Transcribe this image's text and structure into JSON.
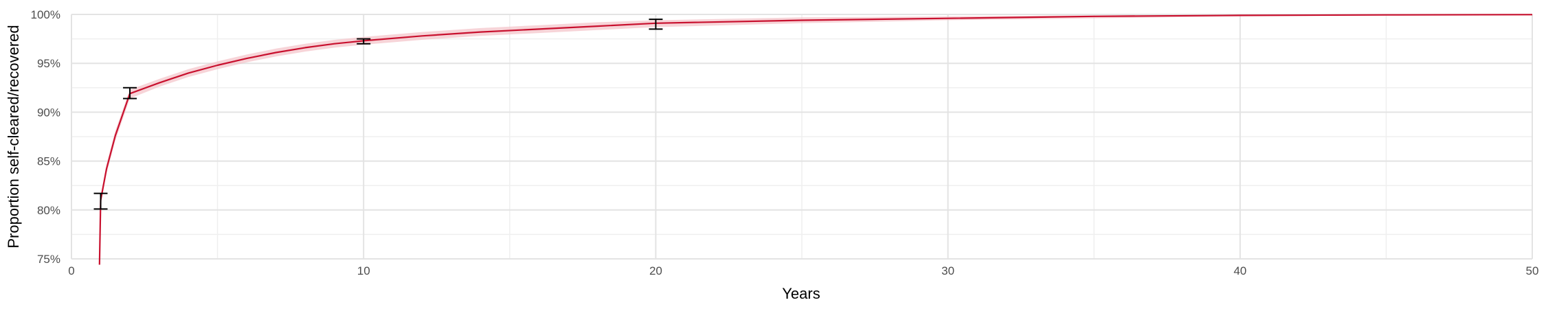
{
  "chart_data": {
    "type": "line",
    "title": "",
    "xlabel": "Years",
    "ylabel": "Proportion self-cleared/recovered",
    "xlim": [
      0,
      50
    ],
    "ylim": [
      0.75,
      1.0
    ],
    "x_ticks": [
      0,
      10,
      20,
      30,
      40,
      50
    ],
    "x_tick_labels": [
      "0",
      "10",
      "20",
      "30",
      "40",
      "50"
    ],
    "y_ticks": [
      0.75,
      0.8,
      0.85,
      0.9,
      0.95,
      1.0
    ],
    "y_tick_labels": [
      "75%",
      "80%",
      "85%",
      "90%",
      "95%",
      "100%"
    ],
    "grid": true,
    "legend": "none",
    "colors": {
      "line": "#c8102e",
      "band": "#f4c2c8",
      "error_bar": "#000000",
      "grid_major": "#e3e3e3",
      "grid_minor": "#efefef"
    },
    "curve": {
      "x": [
        0.96,
        1,
        1.2,
        1.5,
        2,
        3,
        4,
        5,
        6,
        7,
        8,
        9,
        10,
        12,
        14,
        16,
        18,
        20,
        25,
        30,
        35,
        40,
        45,
        50
      ],
      "y": [
        0.744,
        0.81,
        0.842,
        0.876,
        0.919,
        0.93,
        0.94,
        0.948,
        0.955,
        0.961,
        0.966,
        0.97,
        0.973,
        0.978,
        0.982,
        0.985,
        0.988,
        0.991,
        0.994,
        0.996,
        0.998,
        0.999,
        0.9995,
        0.9998
      ],
      "lower": [
        0.744,
        0.805,
        0.837,
        0.871,
        0.914,
        0.926,
        0.936,
        0.944,
        0.951,
        0.957,
        0.962,
        0.966,
        0.969,
        0.974,
        0.978,
        0.981,
        0.984,
        0.987,
        0.991,
        0.994,
        0.996,
        0.998,
        0.999,
        0.9995
      ],
      "upper": [
        0.744,
        0.815,
        0.847,
        0.881,
        0.923,
        0.934,
        0.944,
        0.952,
        0.959,
        0.965,
        0.97,
        0.974,
        0.977,
        0.982,
        0.986,
        0.989,
        0.992,
        0.994,
        0.997,
        0.998,
        0.999,
        0.9998,
        0.9999,
        1.0
      ]
    },
    "error_bars": [
      {
        "x": 1,
        "y": 0.809,
        "low": 0.801,
        "high": 0.817
      },
      {
        "x": 2,
        "y": 0.919,
        "low": 0.914,
        "high": 0.925
      },
      {
        "x": 10,
        "y": 0.973,
        "low": 0.97,
        "high": 0.975
      },
      {
        "x": 20,
        "y": 0.99,
        "low": 0.985,
        "high": 0.995
      }
    ]
  }
}
